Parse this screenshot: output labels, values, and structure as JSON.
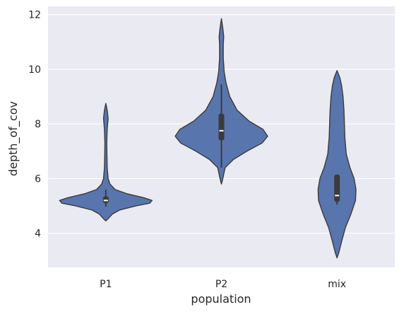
{
  "chart_data": {
    "type": "violin",
    "xlabel": "population",
    "ylabel": "depth_of_cov",
    "ylim": [
      2.75,
      12.3
    ],
    "yticks": [
      4,
      6,
      8,
      10,
      12
    ],
    "grid": true,
    "background_color": "#eaeaf2",
    "violin_color": "#5875ad",
    "edge_color": "#3b3b3b",
    "categories": [
      "P1",
      "P2",
      "mix"
    ],
    "series": [
      {
        "category": "P1",
        "min": 4.45,
        "max": 8.75,
        "q1": 5.1,
        "median": 5.2,
        "q3": 5.35,
        "whisker_low": 4.98,
        "whisker_high": 5.6,
        "density": [
          [
            4.45,
            0.0
          ],
          [
            4.55,
            0.06
          ],
          [
            4.7,
            0.14
          ],
          [
            4.85,
            0.3
          ],
          [
            5.0,
            0.65
          ],
          [
            5.1,
            0.95
          ],
          [
            5.2,
            1.0
          ],
          [
            5.3,
            0.82
          ],
          [
            5.45,
            0.45
          ],
          [
            5.6,
            0.2
          ],
          [
            5.8,
            0.09
          ],
          [
            6.0,
            0.05
          ],
          [
            6.4,
            0.03
          ],
          [
            6.8,
            0.025
          ],
          [
            7.3,
            0.02
          ],
          [
            7.8,
            0.03
          ],
          [
            8.2,
            0.05
          ],
          [
            8.5,
            0.03
          ],
          [
            8.75,
            0.0
          ]
        ]
      },
      {
        "category": "P2",
        "min": 5.8,
        "max": 11.85,
        "q1": 7.4,
        "median": 7.75,
        "q3": 8.38,
        "whisker_low": 6.4,
        "whisker_high": 9.45,
        "density": [
          [
            5.8,
            0.0
          ],
          [
            6.0,
            0.03
          ],
          [
            6.4,
            0.08
          ],
          [
            6.7,
            0.26
          ],
          [
            7.0,
            0.55
          ],
          [
            7.3,
            0.88
          ],
          [
            7.55,
            1.0
          ],
          [
            7.8,
            0.9
          ],
          [
            8.1,
            0.6
          ],
          [
            8.5,
            0.34
          ],
          [
            9.0,
            0.18
          ],
          [
            9.5,
            0.1
          ],
          [
            9.9,
            0.06
          ],
          [
            10.4,
            0.04
          ],
          [
            10.9,
            0.04
          ],
          [
            11.2,
            0.05
          ],
          [
            11.5,
            0.03
          ],
          [
            11.85,
            0.0
          ]
        ]
      },
      {
        "category": "mix",
        "min": 3.1,
        "max": 9.95,
        "q1": 5.15,
        "median": 5.38,
        "q3": 6.15,
        "whisker_low": 5.05,
        "whisker_high": 6.15,
        "density": [
          [
            3.1,
            0.0
          ],
          [
            3.3,
            0.04
          ],
          [
            3.7,
            0.1
          ],
          [
            4.2,
            0.18
          ],
          [
            4.7,
            0.3
          ],
          [
            5.2,
            0.4
          ],
          [
            5.6,
            0.41
          ],
          [
            6.0,
            0.37
          ],
          [
            6.4,
            0.28
          ],
          [
            6.9,
            0.2
          ],
          [
            7.5,
            0.17
          ],
          [
            8.0,
            0.16
          ],
          [
            8.5,
            0.15
          ],
          [
            9.0,
            0.13
          ],
          [
            9.4,
            0.1
          ],
          [
            9.7,
            0.06
          ],
          [
            9.95,
            0.0
          ]
        ]
      }
    ]
  }
}
